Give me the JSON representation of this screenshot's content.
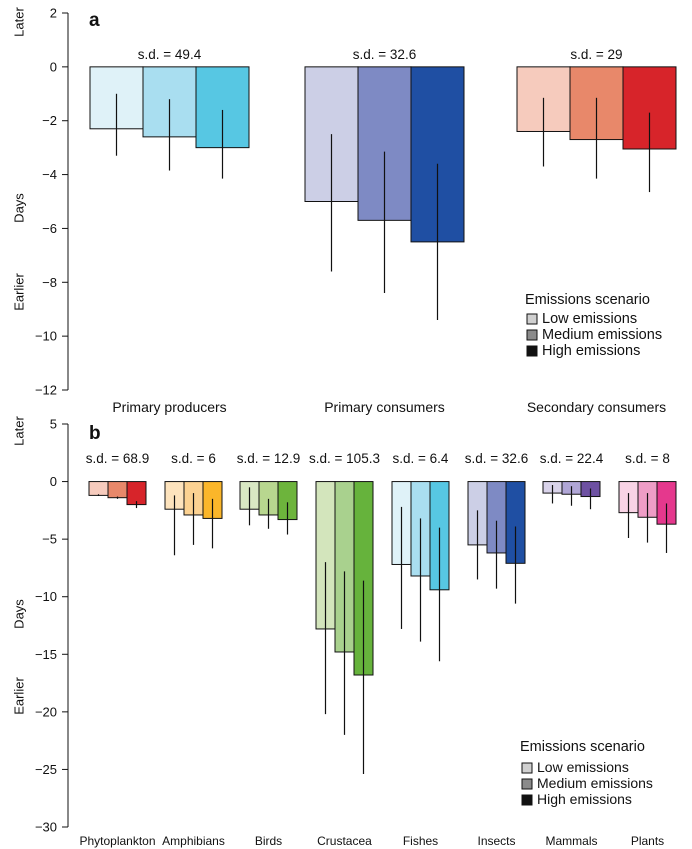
{
  "chart_data": [
    {
      "type": "bar",
      "panel": "a",
      "ylabel_upper": "Later",
      "ylabel_middle": "Days",
      "ylabel_lower": "Earlier",
      "ylim": [
        -12,
        2
      ],
      "yticks": [
        "−12",
        "−10",
        "−8",
        "−6",
        "−4",
        "−2",
        "0",
        "2"
      ],
      "categories": [
        "Primary producers",
        "Primary consumers",
        "Secondary consumers"
      ],
      "sd_labels": [
        "s.d. = 49.4",
        "s.d. = 32.6",
        "s.d. = 29"
      ],
      "series": [
        {
          "name": "Low emissions",
          "values": [
            -2.3,
            -5.0,
            -2.4
          ]
        },
        {
          "name": "Medium emissions",
          "values": [
            -2.6,
            -5.7,
            -2.7
          ]
        },
        {
          "name": "High emissions",
          "values": [
            -3.0,
            -6.5,
            -3.05
          ]
        }
      ],
      "errors": [
        [
          [
            -3.3,
            -1.0
          ],
          [
            -7.6,
            -2.5
          ],
          [
            -3.7,
            -1.15
          ]
        ],
        [
          [
            -3.85,
            -1.2
          ],
          [
            -8.4,
            -3.15
          ],
          [
            -4.15,
            -1.15
          ]
        ],
        [
          [
            -4.15,
            -1.6
          ],
          [
            -9.4,
            -3.6
          ],
          [
            -4.65,
            -1.7
          ]
        ]
      ],
      "colors": [
        [
          "#dff2f8",
          "#cccfe6",
          "#f6cbbd"
        ],
        [
          "#a9def0",
          "#7e8ac4",
          "#e8886a"
        ],
        [
          "#57c7e3",
          "#1f4fa3",
          "#d7242a"
        ]
      ],
      "legend": {
        "title": "Emissions scenario",
        "items": [
          "Low emissions",
          "Medium emissions",
          "High emissions"
        ],
        "swatch_colors": [
          "#d0d0d0",
          "#8a8a8a",
          "#111111"
        ],
        "position": "bottom-right"
      }
    },
    {
      "type": "bar",
      "panel": "b",
      "ylabel_upper": "Later",
      "ylabel_middle": "Days",
      "ylabel_lower": "Earlier",
      "ylim": [
        -30,
        5
      ],
      "yticks": [
        "−30",
        "−25",
        "−20",
        "−15",
        "−10",
        "−5",
        "0",
        "5"
      ],
      "categories": [
        "Phytoplankton",
        "Amphibians",
        "Birds",
        "Crustacea",
        "Fishes",
        "Insects",
        "Mammals",
        "Plants"
      ],
      "sd_labels": [
        "s.d. = 68.9",
        "s.d. = 6",
        "s.d. = 12.9",
        "s.d. = 105.3",
        "s.d. = 6.4",
        "s.d. = 32.6",
        "s.d. = 22.4",
        "s.d. = 8"
      ],
      "series": [
        {
          "name": "Low emissions",
          "values": [
            -1.2,
            -2.4,
            -2.4,
            -12.8,
            -7.2,
            -5.5,
            -1.0,
            -2.7
          ]
        },
        {
          "name": "Medium emissions",
          "values": [
            -1.4,
            -2.9,
            -2.9,
            -14.8,
            -8.2,
            -6.2,
            -1.1,
            -3.1
          ]
        },
        {
          "name": "High emissions",
          "values": [
            -2.0,
            -3.2,
            -3.3,
            -16.8,
            -9.4,
            -7.1,
            -1.3,
            -3.7
          ]
        }
      ],
      "errors": [
        [
          [
            -1.25,
            -1.1
          ],
          [
            -6.4,
            -1.2
          ],
          [
            -3.8,
            -0.5
          ],
          [
            -20.2,
            -7.0
          ],
          [
            -12.8,
            -2.2
          ],
          [
            -8.5,
            -2.5
          ],
          [
            -1.9,
            -0.3
          ],
          [
            -4.9,
            -1.0
          ]
        ],
        [
          [
            -1.5,
            -1.3
          ],
          [
            -5.5,
            -1.0
          ],
          [
            -4.1,
            -1.5
          ],
          [
            -22.0,
            -7.8
          ],
          [
            -13.9,
            -3.2
          ],
          [
            -9.3,
            -3.4
          ],
          [
            -2.1,
            -0.4
          ],
          [
            -5.3,
            -1.0
          ]
        ],
        [
          [
            -2.3,
            -1.7
          ],
          [
            -5.8,
            -1.5
          ],
          [
            -4.6,
            -1.8
          ],
          [
            -25.4,
            -8.6
          ],
          [
            -15.6,
            -4.0
          ],
          [
            -10.6,
            -3.9
          ],
          [
            -2.4,
            -0.6
          ],
          [
            -6.2,
            -1.9
          ]
        ]
      ],
      "colors": [
        [
          "#f6cbbd",
          "#fde3bd",
          "#d9e8c3",
          "#d3e5bc",
          "#dff2f8",
          "#cccfe6",
          "#d9d3ea",
          "#f8d3e5"
        ],
        [
          "#e8886a",
          "#fcd292",
          "#b8d78f",
          "#a9d18e",
          "#a9def0",
          "#7e8ac4",
          "#b0a6d6",
          "#ee9dc6"
        ],
        [
          "#d7242a",
          "#fbb62a",
          "#6db43c",
          "#66b33c",
          "#57c7e3",
          "#1f4fa3",
          "#6e51a2",
          "#e5388d"
        ]
      ],
      "legend": {
        "title": "Emissions scenario",
        "items": [
          "Low emissions",
          "Medium emissions",
          "High emissions"
        ],
        "swatch_colors": [
          "#d0d0d0",
          "#8a8a8a",
          "#111111"
        ],
        "position": "bottom-right"
      }
    }
  ]
}
